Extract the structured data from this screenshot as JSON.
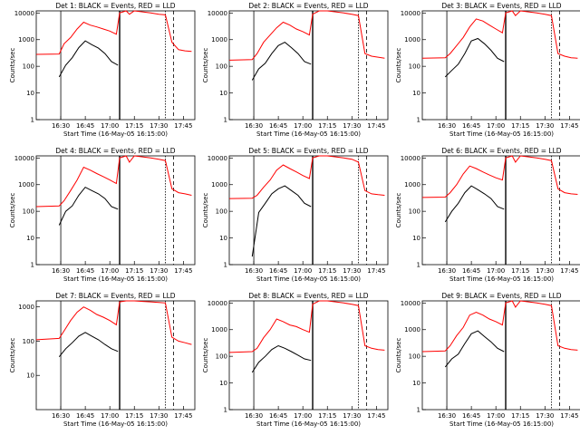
{
  "page": {
    "background": "#ffffff",
    "events_color": "#000000",
    "lld_color": "#ff0000"
  },
  "chart_data": [
    {
      "type": "line",
      "detector": 1,
      "title": "Det 1: BLACK = Events, RED = LLD",
      "xlabel": "Start Time (16-May-05 16:15:00)",
      "ylabel": "Counts/sec",
      "xticks": [
        "16:30",
        "16:45",
        "17:00",
        "17:15",
        "17:30",
        "17:45"
      ],
      "yticks": [
        "1",
        "10",
        "100",
        "1000",
        "10000"
      ],
      "ylim": [
        1,
        12000
      ],
      "yscale": "log",
      "series": [
        {
          "color": "#ff0000",
          "x": [
            "16:15",
            "16:29",
            "16:32",
            "16:36",
            "16:40",
            "16:44",
            "16:48",
            "16:52",
            "16:56",
            "17:00",
            "17:04",
            "17:06",
            "17:10",
            "17:12",
            "17:15",
            "17:20",
            "17:25",
            "17:30",
            "17:34",
            "17:38",
            "17:42",
            "17:46",
            "17:50"
          ],
          "y": [
            280,
            290,
            700,
            1200,
            2500,
            4500,
            3500,
            3000,
            2500,
            2100,
            1600,
            10000,
            12000,
            9000,
            12000,
            11000,
            10000,
            9000,
            8500,
            800,
            420,
            380,
            360
          ]
        },
        {
          "color": "#000000",
          "x": [
            "16:29",
            "16:33",
            "16:37",
            "16:41",
            "16:45",
            "16:49",
            "16:53",
            "16:57",
            "17:01",
            "17:05"
          ],
          "y": [
            40,
            110,
            210,
            500,
            900,
            650,
            480,
            300,
            150,
            110
          ]
        }
      ]
    },
    {
      "type": "line",
      "detector": 2,
      "title": "Det 2: BLACK = Events, RED = LLD",
      "xlabel": "Start Time (16-May-05 16:15:00)",
      "ylabel": "Counts/sec",
      "xticks": [
        "16:30",
        "16:45",
        "17:00",
        "17:15",
        "17:30",
        "17:45"
      ],
      "yticks": [
        "1",
        "10",
        "100",
        "1000",
        "10000"
      ],
      "ylim": [
        1,
        12000
      ],
      "yscale": "log",
      "series": [
        {
          "color": "#ff0000",
          "x": [
            "16:15",
            "16:29",
            "16:32",
            "16:36",
            "16:40",
            "16:44",
            "16:48",
            "16:52",
            "16:56",
            "17:00",
            "17:04",
            "17:06",
            "17:10",
            "17:15",
            "17:20",
            "17:25",
            "17:30",
            "17:34",
            "17:38",
            "17:42",
            "17:46",
            "17:50"
          ],
          "y": [
            170,
            180,
            300,
            800,
            1500,
            2800,
            4500,
            3500,
            2500,
            2000,
            1500,
            9000,
            12000,
            12000,
            11000,
            10000,
            9000,
            8000,
            300,
            240,
            220,
            200
          ]
        },
        {
          "color": "#000000",
          "x": [
            "16:29",
            "16:33",
            "16:37",
            "16:41",
            "16:45",
            "16:49",
            "16:53",
            "16:57",
            "17:01",
            "17:05"
          ],
          "y": [
            30,
            80,
            130,
            300,
            600,
            800,
            500,
            300,
            150,
            120
          ]
        }
      ]
    },
    {
      "type": "line",
      "detector": 3,
      "title": "Det 3: BLACK = Events, RED = LLD",
      "xlabel": "Start Time (16-May-05 16:15:00)",
      "ylabel": "Counts/sec",
      "xticks": [
        "16:30",
        "16:45",
        "17:00",
        "17:15",
        "17:30",
        "17:45"
      ],
      "yticks": [
        "1",
        "10",
        "100",
        "1000",
        "10000"
      ],
      "ylim": [
        1,
        12000
      ],
      "yscale": "log",
      "series": [
        {
          "color": "#ff0000",
          "x": [
            "16:15",
            "16:29",
            "16:32",
            "16:36",
            "16:40",
            "16:44",
            "16:48",
            "16:52",
            "16:56",
            "17:00",
            "17:04",
            "17:06",
            "17:10",
            "17:12",
            "17:15",
            "17:20",
            "17:25",
            "17:30",
            "17:34",
            "17:38",
            "17:42",
            "17:46",
            "17:50"
          ],
          "y": [
            200,
            210,
            300,
            600,
            1200,
            3000,
            6000,
            5000,
            3500,
            2500,
            1800,
            10000,
            12000,
            8000,
            12000,
            11000,
            10000,
            9000,
            8000,
            300,
            240,
            210,
            200
          ]
        },
        {
          "color": "#000000",
          "x": [
            "16:29",
            "16:33",
            "16:37",
            "16:41",
            "16:45",
            "16:49",
            "16:53",
            "16:57",
            "17:01",
            "17:05"
          ],
          "y": [
            40,
            70,
            120,
            300,
            900,
            1100,
            700,
            400,
            200,
            150
          ]
        }
      ]
    },
    {
      "type": "line",
      "detector": 4,
      "title": "Det 4: BLACK = Events, RED = LLD",
      "xlabel": "Start Time (16-May-05 16:15:00)",
      "ylabel": "Counts/sec",
      "xticks": [
        "16:30",
        "16:45",
        "17:00",
        "17:15",
        "17:30",
        "17:45"
      ],
      "yticks": [
        "1",
        "10",
        "100",
        "1000",
        "10000"
      ],
      "ylim": [
        1,
        12000
      ],
      "yscale": "log",
      "series": [
        {
          "color": "#ff0000",
          "x": [
            "16:15",
            "16:29",
            "16:32",
            "16:36",
            "16:40",
            "16:44",
            "16:48",
            "16:52",
            "16:56",
            "17:00",
            "17:04",
            "17:06",
            "17:10",
            "17:12",
            "17:15",
            "17:20",
            "17:25",
            "17:30",
            "17:34",
            "17:38",
            "17:42",
            "17:46",
            "17:50"
          ],
          "y": [
            150,
            160,
            250,
            600,
            1500,
            4500,
            3500,
            2600,
            2000,
            1500,
            1100,
            10000,
            12000,
            7000,
            12000,
            11000,
            10000,
            9000,
            8000,
            700,
            500,
            450,
            400
          ]
        },
        {
          "color": "#000000",
          "x": [
            "16:29",
            "16:33",
            "16:37",
            "16:41",
            "16:45",
            "16:49",
            "16:53",
            "16:57",
            "17:01",
            "17:05"
          ],
          "y": [
            30,
            100,
            160,
            400,
            800,
            600,
            450,
            300,
            150,
            120
          ]
        }
      ]
    },
    {
      "type": "line",
      "detector": 5,
      "title": "Det 5: BLACK = Events, RED = LLD",
      "xlabel": "Start Time (16-May-05 16:15:00)",
      "ylabel": "Counts/sec",
      "xticks": [
        "16:30",
        "16:45",
        "17:00",
        "17:15",
        "17:30",
        "17:45"
      ],
      "yticks": [
        "1",
        "10",
        "100",
        "1000",
        "10000"
      ],
      "ylim": [
        1,
        12000
      ],
      "yscale": "log",
      "series": [
        {
          "color": "#ff0000",
          "x": [
            "16:15",
            "16:29",
            "16:32",
            "16:36",
            "16:40",
            "16:44",
            "16:48",
            "16:52",
            "16:56",
            "17:00",
            "17:04",
            "17:06",
            "17:10",
            "17:15",
            "17:20",
            "17:25",
            "17:30",
            "17:34",
            "17:38",
            "17:42",
            "17:46",
            "17:50"
          ],
          "y": [
            300,
            310,
            400,
            800,
            1500,
            3500,
            5500,
            4000,
            3000,
            2200,
            1700,
            10000,
            12000,
            12000,
            11000,
            10000,
            9000,
            7000,
            600,
            450,
            420,
            400
          ]
        },
        {
          "color": "#000000",
          "x": [
            "16:29",
            "16:33",
            "16:37",
            "16:41",
            "16:45",
            "16:49",
            "16:53",
            "16:57",
            "17:01",
            "17:05"
          ],
          "y": [
            2,
            90,
            200,
            450,
            700,
            900,
            600,
            400,
            200,
            150
          ]
        }
      ]
    },
    {
      "type": "line",
      "detector": 6,
      "title": "Det 6: BLACK = Events, RED = LLD",
      "xlabel": "Start Time (16-May-05 16:15:00)",
      "ylabel": "Counts/sec",
      "xticks": [
        "16:30",
        "16:45",
        "17:00",
        "17:15",
        "17:30",
        "17:45"
      ],
      "yticks": [
        "1",
        "10",
        "100",
        "1000",
        "10000"
      ],
      "ylim": [
        1,
        12000
      ],
      "yscale": "log",
      "series": [
        {
          "color": "#ff0000",
          "x": [
            "16:15",
            "16:29",
            "16:32",
            "16:36",
            "16:40",
            "16:44",
            "16:48",
            "16:52",
            "16:56",
            "17:00",
            "17:04",
            "17:06",
            "17:10",
            "17:12",
            "17:15",
            "17:20",
            "17:25",
            "17:30",
            "17:34",
            "17:38",
            "17:42",
            "17:46",
            "17:50"
          ],
          "y": [
            330,
            340,
            500,
            1000,
            2500,
            5000,
            4000,
            3000,
            2300,
            1800,
            1500,
            10000,
            12000,
            7000,
            12000,
            11000,
            10000,
            9000,
            8000,
            700,
            500,
            450,
            430
          ]
        },
        {
          "color": "#000000",
          "x": [
            "16:29",
            "16:33",
            "16:37",
            "16:41",
            "16:45",
            "16:49",
            "16:53",
            "16:57",
            "17:01",
            "17:05"
          ],
          "y": [
            40,
            100,
            200,
            500,
            900,
            650,
            450,
            300,
            150,
            120
          ]
        }
      ]
    },
    {
      "type": "line",
      "detector": 7,
      "title": "Det 7: BLACK = Events, RED = LLD",
      "xlabel": "Start Time (16-May-05 16:15:00)",
      "ylabel": "Counts/sec",
      "xticks": [
        "16:30",
        "16:45",
        "17:00",
        "17:15",
        "17:30",
        "17:45"
      ],
      "yticks": [
        "10",
        "100",
        "1000"
      ],
      "ylim": [
        1,
        1500
      ],
      "yscale": "log",
      "series": [
        {
          "color": "#ff0000",
          "x": [
            "16:15",
            "16:29",
            "16:32",
            "16:36",
            "16:40",
            "16:44",
            "16:48",
            "16:52",
            "16:56",
            "17:00",
            "17:04",
            "17:06",
            "17:10",
            "17:15",
            "17:20",
            "17:25",
            "17:30",
            "17:34",
            "17:38",
            "17:42",
            "17:46",
            "17:50"
          ],
          "y": [
            110,
            120,
            200,
            400,
            700,
            1000,
            800,
            600,
            500,
            400,
            300,
            1400,
            1500,
            1500,
            1450,
            1400,
            1350,
            1300,
            130,
            100,
            90,
            80
          ]
        },
        {
          "color": "#000000",
          "x": [
            "16:29",
            "16:33",
            "16:37",
            "16:41",
            "16:45",
            "16:49",
            "16:53",
            "16:57",
            "17:01",
            "17:05"
          ],
          "y": [
            35,
            60,
            90,
            140,
            180,
            140,
            110,
            80,
            60,
            50
          ]
        }
      ]
    },
    {
      "type": "line",
      "detector": 8,
      "title": "Det 8: BLACK = Events, RED = LLD",
      "xlabel": "Start Time (16-May-05 16:15:00)",
      "ylabel": "Counts/sec",
      "xticks": [
        "16:30",
        "16:45",
        "17:00",
        "17:15",
        "17:30",
        "17:45"
      ],
      "yticks": [
        "1",
        "10",
        "100",
        "1000",
        "10000"
      ],
      "ylim": [
        1,
        12000
      ],
      "yscale": "log",
      "series": [
        {
          "color": "#ff0000",
          "x": [
            "16:15",
            "16:29",
            "16:32",
            "16:36",
            "16:40",
            "16:44",
            "16:48",
            "16:52",
            "16:56",
            "17:00",
            "17:04",
            "17:06",
            "17:10",
            "17:15",
            "17:20",
            "17:25",
            "17:30",
            "17:34",
            "17:38",
            "17:42",
            "17:46",
            "17:50"
          ],
          "y": [
            140,
            150,
            200,
            500,
            1000,
            2500,
            2000,
            1500,
            1300,
            1000,
            800,
            9000,
            12000,
            12000,
            11000,
            10000,
            9000,
            8000,
            250,
            200,
            180,
            170
          ]
        },
        {
          "color": "#000000",
          "x": [
            "16:29",
            "16:33",
            "16:37",
            "16:41",
            "16:45",
            "16:49",
            "16:53",
            "16:57",
            "17:01",
            "17:05"
          ],
          "y": [
            25,
            60,
            100,
            180,
            250,
            200,
            150,
            110,
            80,
            70
          ]
        }
      ]
    },
    {
      "type": "line",
      "detector": 9,
      "title": "Det 9: BLACK = Events, RED = LLD",
      "xlabel": "Start Time (16-May-05 16:15:00)",
      "ylabel": "Counts/sec",
      "xticks": [
        "16:30",
        "16:45",
        "17:00",
        "17:15",
        "17:30",
        "17:45"
      ],
      "yticks": [
        "1",
        "10",
        "100",
        "1000",
        "10000"
      ],
      "ylim": [
        1,
        12000
      ],
      "yscale": "log",
      "series": [
        {
          "color": "#ff0000",
          "x": [
            "16:15",
            "16:29",
            "16:32",
            "16:36",
            "16:40",
            "16:44",
            "16:48",
            "16:52",
            "16:56",
            "17:00",
            "17:04",
            "17:06",
            "17:10",
            "17:12",
            "17:15",
            "17:20",
            "17:25",
            "17:30",
            "17:34",
            "17:38",
            "17:42",
            "17:46",
            "17:50"
          ],
          "y": [
            150,
            160,
            250,
            600,
            1200,
            3500,
            4500,
            3500,
            2500,
            2000,
            1500,
            10000,
            12000,
            7000,
            12000,
            11000,
            10000,
            9000,
            8000,
            250,
            200,
            180,
            170
          ]
        },
        {
          "color": "#000000",
          "x": [
            "16:29",
            "16:33",
            "16:37",
            "16:41",
            "16:45",
            "16:49",
            "16:53",
            "16:57",
            "17:01",
            "17:05"
          ],
          "y": [
            40,
            80,
            120,
            300,
            700,
            900,
            550,
            350,
            200,
            150
          ]
        }
      ]
    }
  ]
}
